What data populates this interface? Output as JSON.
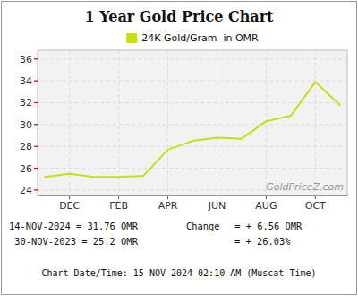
{
  "chart_data": {
    "type": "line",
    "title": "1 Year Gold Price Chart",
    "x": [
      0,
      1,
      2,
      3,
      4,
      5,
      6,
      7,
      8,
      9,
      10,
      11,
      12
    ],
    "series": [
      {
        "name": "24K Gold/Gram  in OMR",
        "color": "#ccdd11",
        "values": [
          25.2,
          25.5,
          25.2,
          25.2,
          25.3,
          27.7,
          28.5,
          28.8,
          28.7,
          30.3,
          30.8,
          33.9,
          31.8
        ]
      }
    ],
    "xlim": [
      -0.3,
      12.3
    ],
    "xticks": [
      {
        "value": 1,
        "label": "DEC"
      },
      {
        "value": 3,
        "label": "FEB"
      },
      {
        "value": 5,
        "label": "APR"
      },
      {
        "value": 7,
        "label": "JUN"
      },
      {
        "value": 9,
        "label": "AUG"
      },
      {
        "value": 11,
        "label": "OCT"
      }
    ],
    "ylim": [
      23.5,
      36.8
    ],
    "yticks": [
      24,
      26,
      28,
      30,
      32,
      34,
      36
    ],
    "grid": true,
    "legend": "top",
    "annotations": [
      "GoldPriceZ.com",
      "14-NOV-2024 = 31.76 OMR",
      " 30-NOV-2023 = 25.2 OMR",
      "Change",
      " = + 6.56 OMR",
      "= + 26.03%",
      "Chart Date/Time: 15-NOV-2024 02:10 AM (Muscat Time)"
    ]
  }
}
